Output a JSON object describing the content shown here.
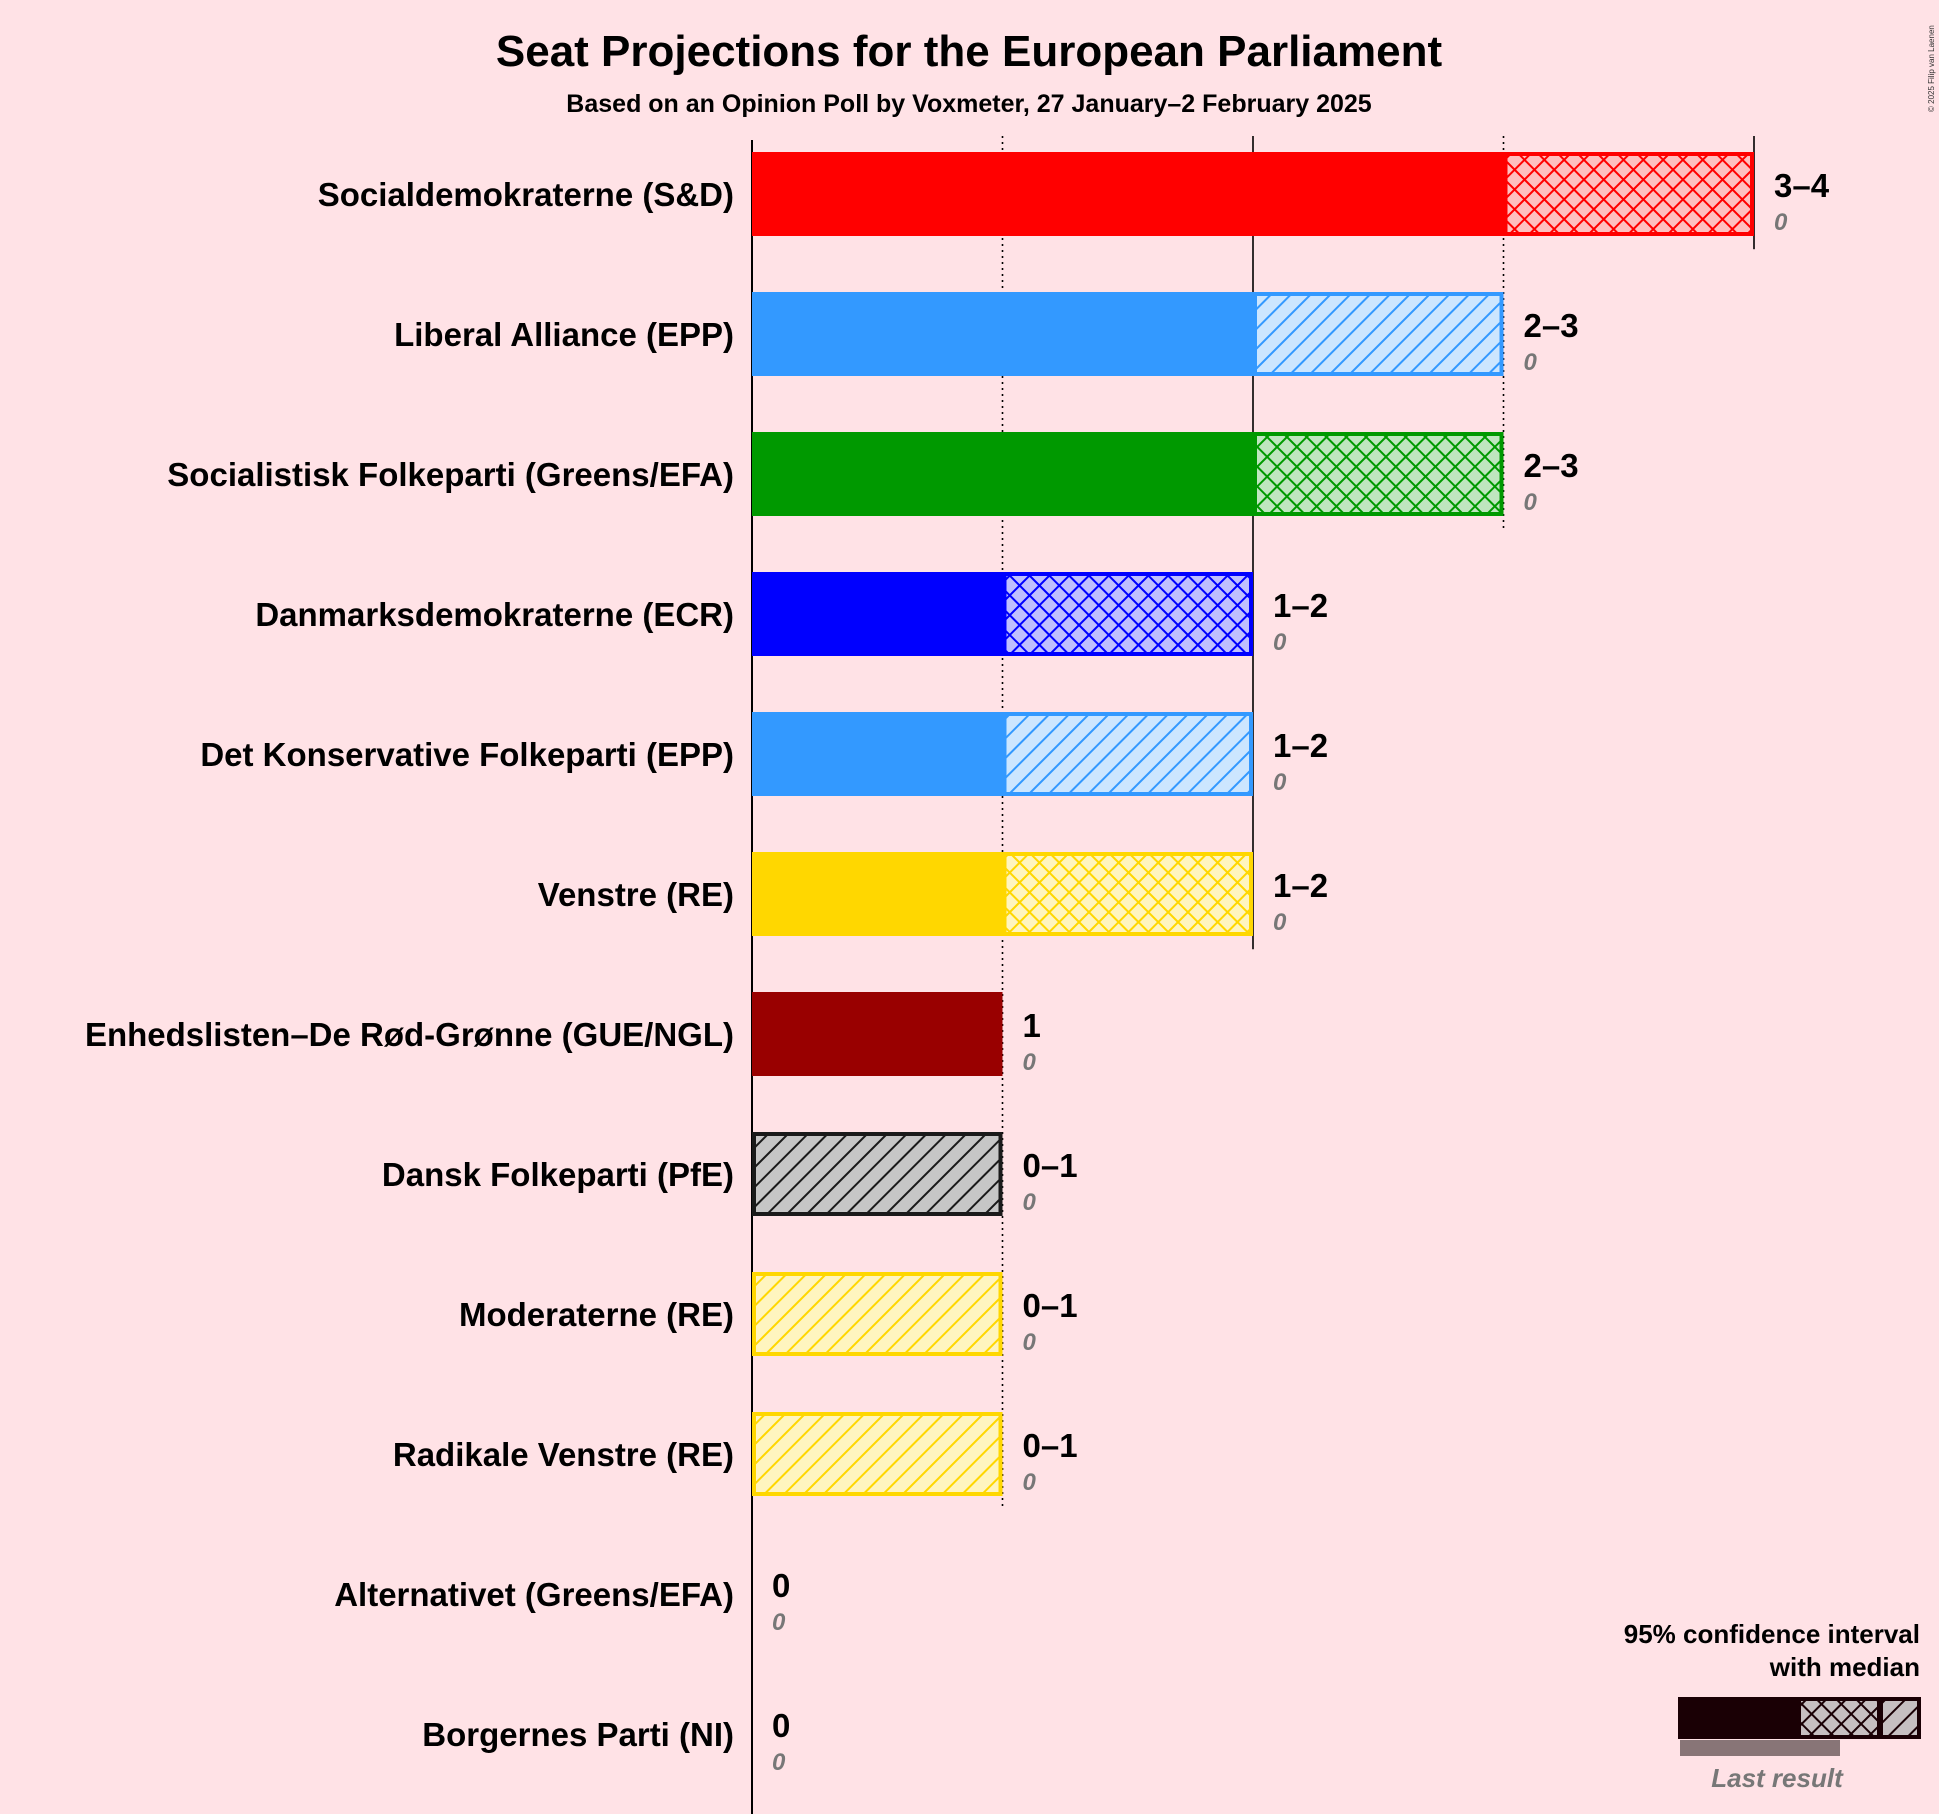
{
  "chart_data": {
    "type": "bar",
    "orientation": "horizontal",
    "title": "Seat Projections for the European Parliament",
    "subtitle": "Based on an Opinion Poll by Voxmeter, 27 January–2 February 2025",
    "copyright": "© 2025 Filip van Laenen",
    "xlim": [
      0,
      4
    ],
    "parties": [
      {
        "name": "Socialdemokraterne (S&D)",
        "low": 3,
        "median": 3,
        "high": 4,
        "range_label": "3–4",
        "last_result": 0,
        "last_result_label": "0",
        "color": "#FF0000",
        "pattern": "cross"
      },
      {
        "name": "Liberal Alliance (EPP)",
        "low": 2,
        "median": 2,
        "high": 3,
        "range_label": "2–3",
        "last_result": 0,
        "last_result_label": "0",
        "color": "#3399FF",
        "pattern": "diag"
      },
      {
        "name": "Socialistisk Folkeparti (Greens/EFA)",
        "low": 2,
        "median": 2,
        "high": 3,
        "range_label": "2–3",
        "last_result": 0,
        "last_result_label": "0",
        "color": "#009900",
        "pattern": "cross"
      },
      {
        "name": "Danmarksdemokraterne (ECR)",
        "low": 1,
        "median": 1,
        "high": 2,
        "range_label": "1–2",
        "last_result": 0,
        "last_result_label": "0",
        "color": "#0000FF",
        "pattern": "cross"
      },
      {
        "name": "Det Konservative Folkeparti (EPP)",
        "low": 1,
        "median": 1,
        "high": 2,
        "range_label": "1–2",
        "last_result": 0,
        "last_result_label": "0",
        "color": "#3399FF",
        "pattern": "diag"
      },
      {
        "name": "Venstre (RE)",
        "low": 1,
        "median": 1,
        "high": 2,
        "range_label": "1–2",
        "last_result": 0,
        "last_result_label": "0",
        "color": "#FFD700",
        "pattern": "cross"
      },
      {
        "name": "Enhedslisten–De Rød-Grønne (GUE/NGL)",
        "low": 1,
        "median": 1,
        "high": 1,
        "range_label": "1",
        "last_result": 0,
        "last_result_label": "0",
        "color": "#990000",
        "pattern": "none"
      },
      {
        "name": "Dansk Folkeparti (PfE)",
        "low": 0,
        "median": 0,
        "high": 1,
        "range_label": "0–1",
        "last_result": 0,
        "last_result_label": "0",
        "color": "#1A1A1A",
        "pattern": "diag"
      },
      {
        "name": "Moderaterne (RE)",
        "low": 0,
        "median": 0,
        "high": 1,
        "range_label": "0–1",
        "last_result": 0,
        "last_result_label": "0",
        "color": "#FFD700",
        "pattern": "diag"
      },
      {
        "name": "Radikale Venstre (RE)",
        "low": 0,
        "median": 0,
        "high": 1,
        "range_label": "0–1",
        "last_result": 0,
        "last_result_label": "0",
        "color": "#FFD700",
        "pattern": "diag"
      },
      {
        "name": "Alternativet (Greens/EFA)",
        "low": 0,
        "median": 0,
        "high": 0,
        "range_label": "0",
        "last_result": 0,
        "last_result_label": "0",
        "color": "#009900",
        "pattern": "none"
      },
      {
        "name": "Borgernes Parti (NI)",
        "low": 0,
        "median": 0,
        "high": 0,
        "range_label": "0",
        "last_result": 0,
        "last_result_label": "0",
        "color": "#666666",
        "pattern": "none"
      }
    ],
    "legend": {
      "line1": "95% confidence interval",
      "line2": "with median",
      "last_result": "Last result",
      "placement": "bottom-right"
    }
  }
}
